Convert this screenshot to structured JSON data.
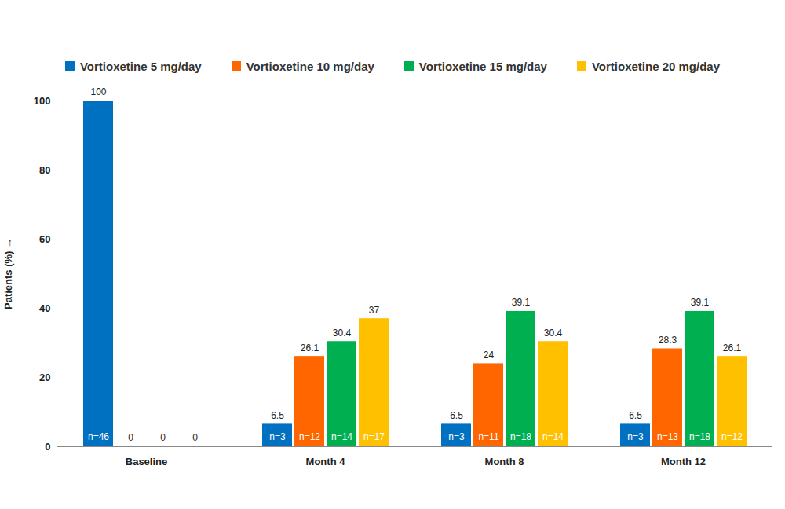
{
  "chart_data": {
    "type": "bar",
    "categories": [
      "Baseline",
      "Month 4",
      "Month 8",
      "Month 12"
    ],
    "series": [
      {
        "name": "Vortioxetine 5 mg/day",
        "color": "#0070c0",
        "values": [
          100,
          6.5,
          6.5,
          6.5
        ],
        "annotations": [
          "n=46",
          "n=3",
          "n=3",
          "n=3"
        ]
      },
      {
        "name": "Vortioxetine 10 mg/day",
        "color": "#ff6600",
        "values": [
          0,
          26.1,
          24,
          28.3
        ],
        "annotations": [
          null,
          "n=12",
          "n=11",
          "n=13"
        ]
      },
      {
        "name": "Vortioxetine 15 mg/day",
        "color": "#00b050",
        "values": [
          0,
          30.4,
          39.1,
          39.1
        ],
        "annotations": [
          null,
          "n=14",
          "n=18",
          "n=18"
        ]
      },
      {
        "name": "Vortioxetine 20 mg/day",
        "color": "#ffc000",
        "values": [
          0,
          37,
          30.4,
          26.1
        ],
        "annotations": [
          null,
          "n=17",
          "n=14",
          "n=12"
        ]
      }
    ],
    "y_label": "Patients (%)",
    "ylim": [
      0,
      100
    ],
    "yticks": [
      0,
      20,
      40,
      60,
      80,
      100
    ],
    "legend": "top",
    "data_labels": true,
    "grid": false
  }
}
